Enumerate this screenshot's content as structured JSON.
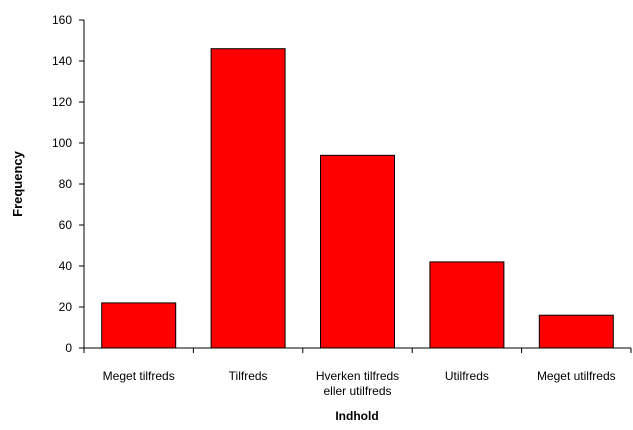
{
  "chart_data": {
    "type": "bar",
    "categories": [
      [
        "Meget tilfreds"
      ],
      [
        "Tilfreds"
      ],
      [
        "Hverken tilfreds",
        "eller utilfreds"
      ],
      [
        "Utilfreds"
      ],
      [
        "Meget utilfreds"
      ]
    ],
    "values": [
      22,
      146,
      94,
      42,
      16
    ],
    "xlabel": "Indhold",
    "ylabel": "Frequency",
    "ylim": [
      0,
      160
    ],
    "yticks": [
      0,
      20,
      40,
      60,
      80,
      100,
      120,
      140,
      160
    ],
    "grid": false,
    "legend": false,
    "bar_color": "#ff0000",
    "bar_stroke": "#000000"
  }
}
